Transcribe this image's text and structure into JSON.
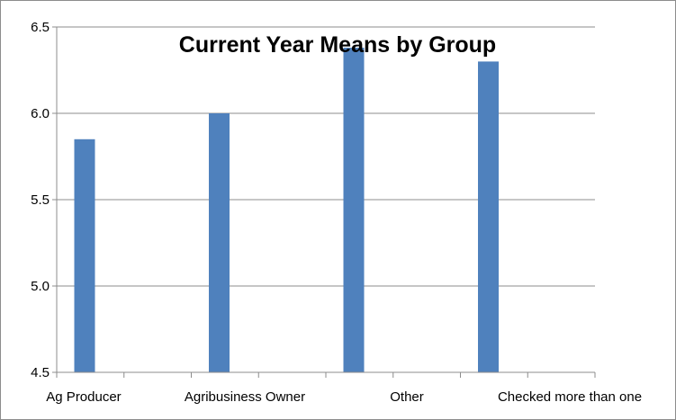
{
  "chart_data": {
    "type": "bar",
    "title": "Current Year Means by Group",
    "xlabel": "",
    "ylabel": "",
    "categories": [
      "Ag Producer",
      "Agribusiness Owner",
      "Other",
      "Checked more than one"
    ],
    "values": [
      5.85,
      6.0,
      6.38,
      6.3
    ],
    "ylim": [
      4.5,
      6.5
    ],
    "yticks": [
      "4.5",
      "5.0",
      "5.5",
      "6.0",
      "6.5"
    ],
    "grid": true,
    "legend": "none",
    "bar_color": "#4f81bd",
    "grid_color": "#8c8c8c"
  }
}
